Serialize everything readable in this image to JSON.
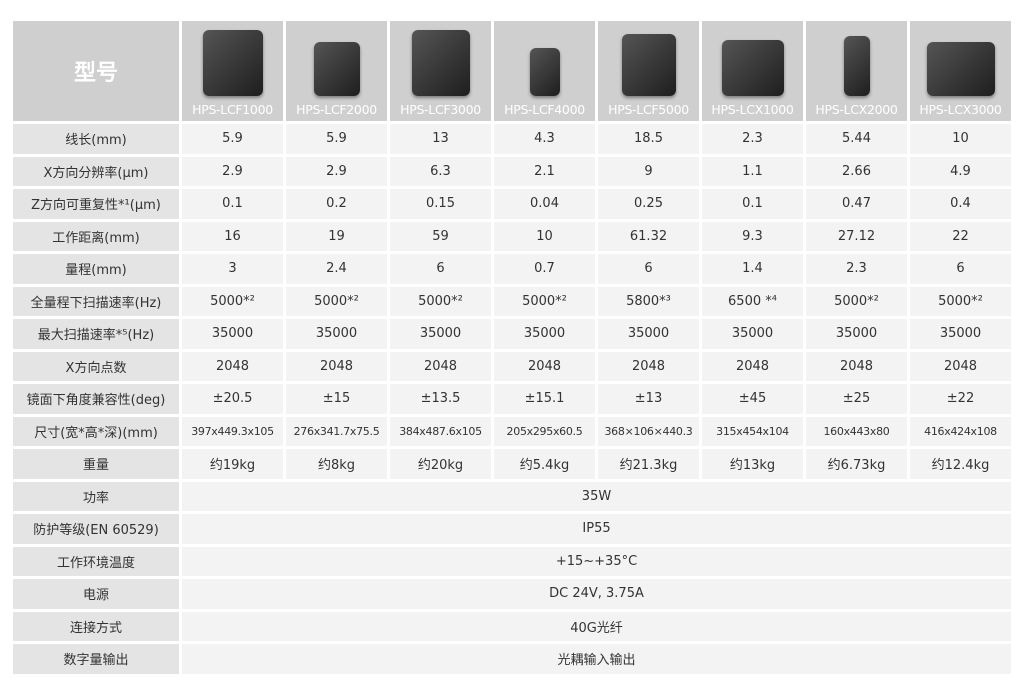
{
  "header": {
    "label": "型号"
  },
  "products": [
    "HPS-LCF1000",
    "HPS-LCF2000",
    "HPS-LCF3000",
    "HPS-LCF4000",
    "HPS-LCF5000",
    "HPS-LCX1000",
    "HPS-LCX2000",
    "HPS-LCX3000"
  ],
  "rows": [
    {
      "label": "线长(mm)",
      "values": [
        "5.9",
        "5.9",
        "13",
        "4.3",
        "18.5",
        "2.3",
        "5.44",
        "10"
      ]
    },
    {
      "label": "X方向分辨率(μm)",
      "values": [
        "2.9",
        "2.9",
        "6.3",
        "2.1",
        "9",
        "1.1",
        "2.66",
        "4.9"
      ]
    },
    {
      "label": "Z方向可重复性*¹(μm)",
      "values": [
        "0.1",
        "0.2",
        "0.15",
        "0.04",
        "0.25",
        "0.1",
        "0.47",
        "0.4"
      ]
    },
    {
      "label": "工作距离(mm)",
      "values": [
        "16",
        "19",
        "59",
        "10",
        "61.32",
        "9.3",
        "27.12",
        "22"
      ]
    },
    {
      "label": "量程(mm)",
      "values": [
        "3",
        "2.4",
        "6",
        "0.7",
        "6",
        "1.4",
        "2.3",
        "6"
      ]
    },
    {
      "label": "全量程下扫描速率(Hz)",
      "values": [
        "5000*²",
        "5000*²",
        "5000*²",
        "5000*²",
        "5800*³",
        "6500 *⁴",
        "5000*²",
        "5000*²"
      ]
    },
    {
      "label": "最大扫描速率*⁵(Hz)",
      "values": [
        "35000",
        "35000",
        "35000",
        "35000",
        "35000",
        "35000",
        "35000",
        "35000"
      ]
    },
    {
      "label": "X方向点数",
      "values": [
        "2048",
        "2048",
        "2048",
        "2048",
        "2048",
        "2048",
        "2048",
        "2048"
      ]
    },
    {
      "label": "镜面下角度兼容性(deg)",
      "values": [
        "±20.5",
        "±15",
        "±13.5",
        "±15.1",
        "±13",
        "±45",
        "±25",
        "±22"
      ]
    },
    {
      "label": "尺寸(宽*高*深)(mm)",
      "values": [
        "397x449.3x105",
        "276x341.7x75.5",
        "384x487.6x105",
        "205x295x60.5",
        "368×106×440.3",
        "315x454x104",
        "160x443x80",
        "416x424x108"
      ]
    },
    {
      "label": "重量",
      "values": [
        "约19kg",
        "约8kg",
        "约20kg",
        "约5.4kg",
        "约21.3kg",
        "约13kg",
        "约6.73kg",
        "约12.4kg"
      ]
    }
  ],
  "common_rows": [
    {
      "label": "功率",
      "value": "35W"
    },
    {
      "label": "防护等级(EN 60529)",
      "value": "IP55"
    },
    {
      "label": "工作环境温度",
      "value": "+15~+35°C"
    },
    {
      "label": "电源",
      "value": "DC 24V, 3.75A"
    },
    {
      "label": "连接方式",
      "value": "40G光纤"
    },
    {
      "label": "数字量输出",
      "value": "光耦输入输出"
    }
  ]
}
